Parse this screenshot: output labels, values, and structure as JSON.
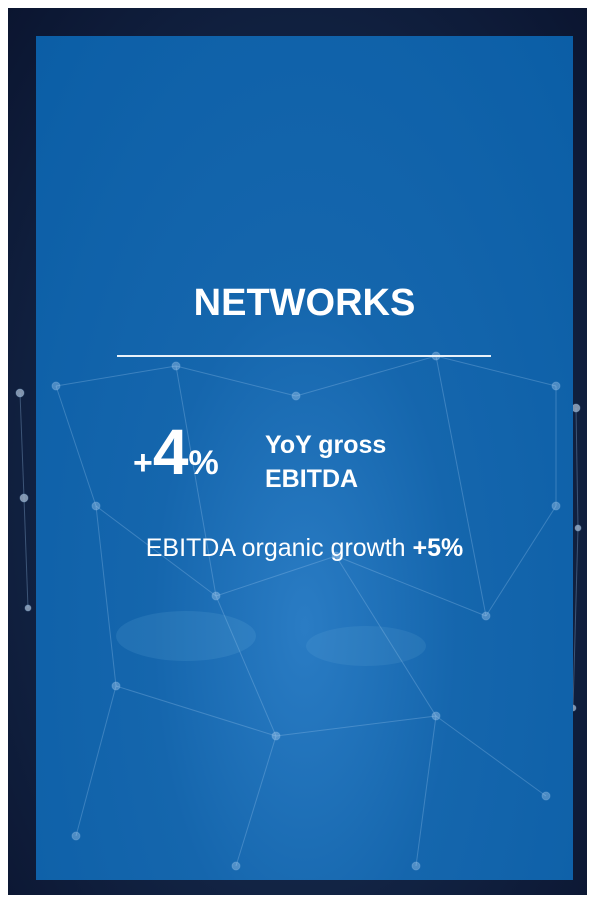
{
  "card": {
    "title": "NETWORKS",
    "headline": {
      "sign": "+",
      "number": "4",
      "unit": "%",
      "description": "YoY gross EBITDA"
    },
    "detail": {
      "text": "EBITDA organic growth",
      "highlight": "+5%"
    }
  }
}
